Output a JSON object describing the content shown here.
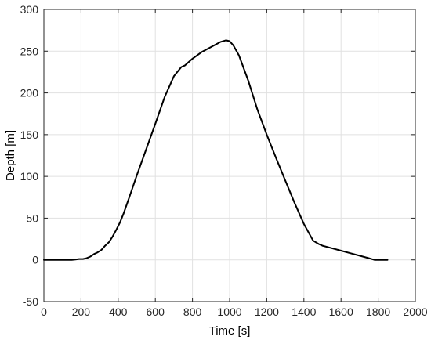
{
  "chart_data": {
    "type": "line",
    "title": "",
    "xlabel": "Time [s]",
    "ylabel": "Depth [m]",
    "xlim": [
      0,
      2000
    ],
    "ylim": [
      -50,
      300
    ],
    "xticks": [
      0,
      200,
      400,
      600,
      800,
      1000,
      1200,
      1400,
      1600,
      1800,
      2000
    ],
    "yticks": [
      -50,
      0,
      50,
      100,
      150,
      200,
      250,
      300
    ],
    "grid": true,
    "legend": "none",
    "line_color": "#000000",
    "series": [
      {
        "x": [
          0,
          100,
          150,
          170,
          190,
          210,
          230,
          250,
          270,
          290,
          310,
          330,
          350,
          370,
          390,
          410,
          430,
          460,
          500,
          550,
          600,
          650,
          700,
          740,
          760,
          800,
          850,
          900,
          950,
          980,
          1000,
          1020,
          1050,
          1100,
          1150,
          1200,
          1250,
          1300,
          1350,
          1400,
          1450,
          1480,
          1500,
          1550,
          1600,
          1650,
          1700,
          1750,
          1780,
          1800,
          1850
        ],
        "y": [
          0,
          0,
          0,
          0.5,
          1,
          1,
          2,
          4,
          7,
          9,
          12,
          17,
          21,
          28,
          36,
          45,
          56,
          75,
          101,
          132,
          163,
          195,
          220,
          231,
          233,
          241,
          249,
          255,
          261,
          263,
          262,
          257,
          245,
          215,
          180,
          150,
          122,
          95,
          68,
          43,
          23,
          19,
          17,
          14,
          11,
          8,
          5,
          2,
          0,
          0,
          0
        ]
      }
    ]
  }
}
